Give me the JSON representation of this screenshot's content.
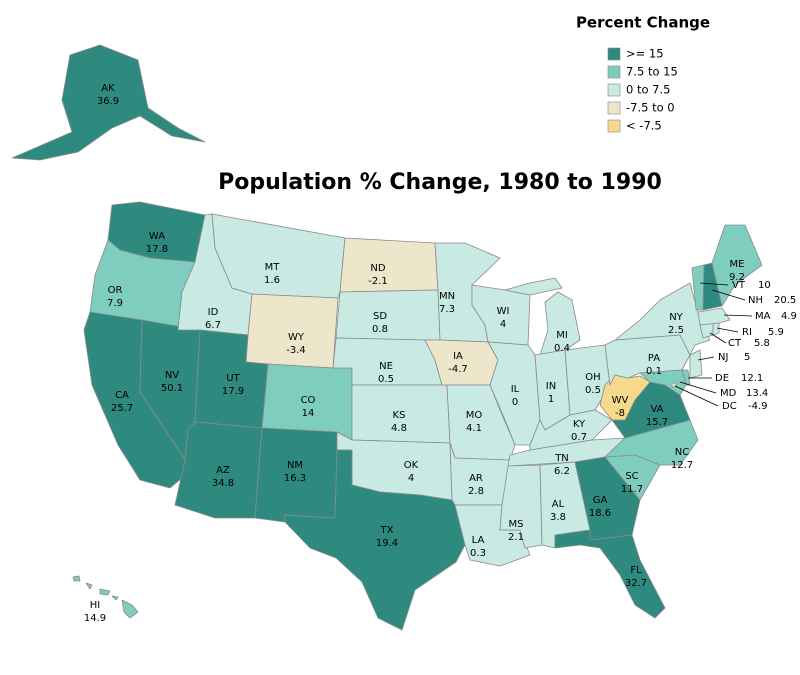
{
  "chart_data": {
    "type": "choropleth",
    "title": "Population % Change, 1980 to 1990",
    "legend_title": "Percent Change",
    "breaks": [
      -7.5,
      0,
      7.5,
      15
    ],
    "legend": [
      {
        "label": ">= 15",
        "color": "#2e8a7e"
      },
      {
        "label": "7.5 to 15",
        "color": "#7fcdbe"
      },
      {
        "label": "0 to 7.5",
        "color": "#c8eae3"
      },
      {
        "label": "-7.5 to 0",
        "color": "#eee6cb"
      },
      {
        "label": "< -7.5",
        "color": "#f6d98b"
      }
    ],
    "states": [
      {
        "name": "AK",
        "value": 36.9
      },
      {
        "name": "HI",
        "value": 14.9
      },
      {
        "name": "WA",
        "value": 17.8
      },
      {
        "name": "OR",
        "value": 7.9
      },
      {
        "name": "CA",
        "value": 25.7
      },
      {
        "name": "NV",
        "value": 50.1
      },
      {
        "name": "ID",
        "value": 6.7
      },
      {
        "name": "MT",
        "value": 1.6
      },
      {
        "name": "WY",
        "value": -3.4
      },
      {
        "name": "UT",
        "value": 17.9
      },
      {
        "name": "CO",
        "value": 14
      },
      {
        "name": "AZ",
        "value": 34.8
      },
      {
        "name": "NM",
        "value": 16.3
      },
      {
        "name": "ND",
        "value": -2.1
      },
      {
        "name": "SD",
        "value": 0.8
      },
      {
        "name": "NE",
        "value": 0.5
      },
      {
        "name": "KS",
        "value": 4.8
      },
      {
        "name": "OK",
        "value": 4
      },
      {
        "name": "TX",
        "value": 19.4
      },
      {
        "name": "MN",
        "value": 7.3
      },
      {
        "name": "IA",
        "value": -4.7
      },
      {
        "name": "MO",
        "value": 4.1
      },
      {
        "name": "AR",
        "value": 2.8
      },
      {
        "name": "LA",
        "value": 0.3
      },
      {
        "name": "WI",
        "value": 4
      },
      {
        "name": "IL",
        "value": 0
      },
      {
        "name": "MI",
        "value": 0.4
      },
      {
        "name": "IN",
        "value": 1
      },
      {
        "name": "OH",
        "value": 0.5
      },
      {
        "name": "KY",
        "value": 0.7
      },
      {
        "name": "TN",
        "value": 6.2
      },
      {
        "name": "MS",
        "value": 2.1
      },
      {
        "name": "AL",
        "value": 3.8
      },
      {
        "name": "GA",
        "value": 18.6
      },
      {
        "name": "FL",
        "value": 32.7
      },
      {
        "name": "SC",
        "value": 11.7
      },
      {
        "name": "NC",
        "value": 12.7
      },
      {
        "name": "VA",
        "value": 15.7
      },
      {
        "name": "WV",
        "value": -8
      },
      {
        "name": "PA",
        "value": 0.1
      },
      {
        "name": "NY",
        "value": 2.5
      },
      {
        "name": "MD",
        "value": 13.4
      },
      {
        "name": "DE",
        "value": 12.1
      },
      {
        "name": "NJ",
        "value": 5
      },
      {
        "name": "CT",
        "value": 5.8
      },
      {
        "name": "RI",
        "value": 5.9
      },
      {
        "name": "MA",
        "value": 4.9
      },
      {
        "name": "VT",
        "value": 10
      },
      {
        "name": "NH",
        "value": 20.5
      },
      {
        "name": "ME",
        "value": 9.2
      },
      {
        "name": "DC",
        "value": -4.9
      }
    ]
  }
}
